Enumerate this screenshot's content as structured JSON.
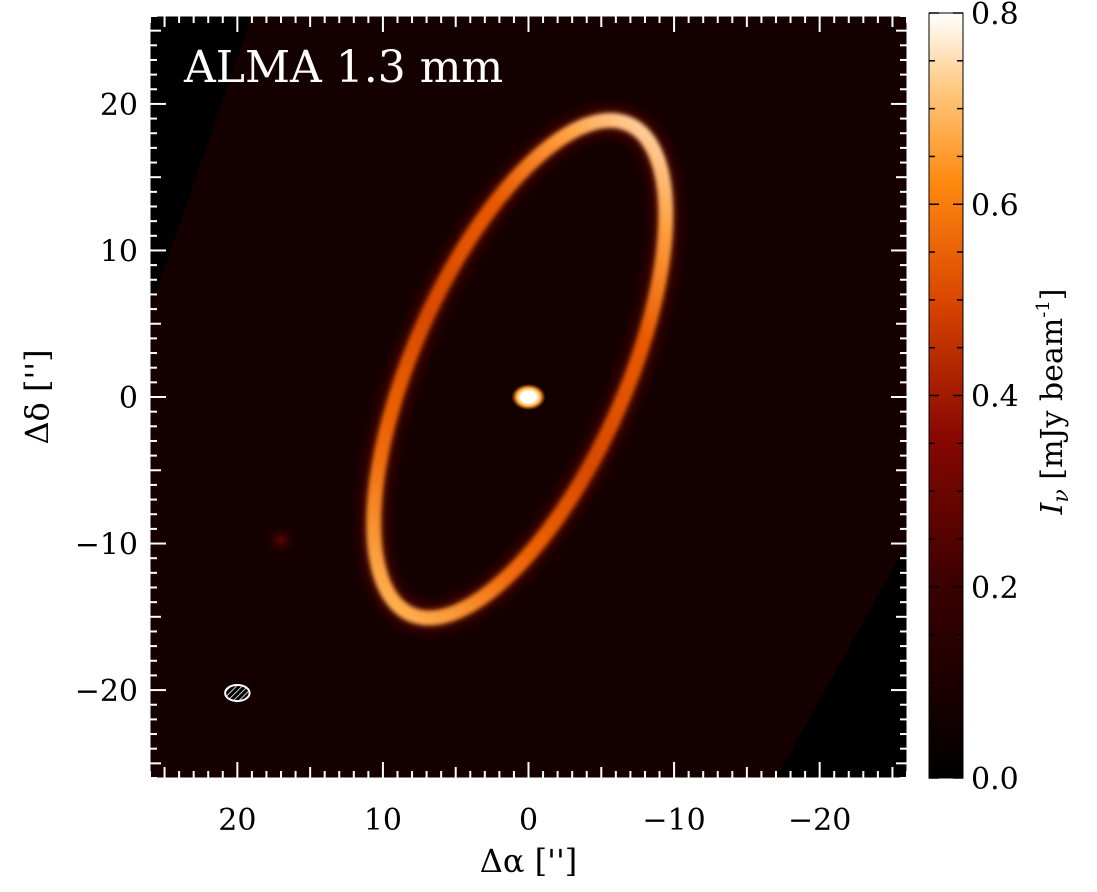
{
  "chart_data": {
    "type": "heatmap",
    "title": "ALMA 1.3 mm",
    "xlabel": "Δα  ['']",
    "ylabel": "Δδ  ['']",
    "xlim": [
      26,
      -26
    ],
    "ylim": [
      -26,
      26
    ],
    "x_ticks": [
      20,
      10,
      0,
      -10,
      -20
    ],
    "y_ticks": [
      20,
      10,
      0,
      -10,
      -20
    ],
    "x_tick_labels": [
      "20",
      "10",
      "0",
      "−10",
      "−20"
    ],
    "y_tick_labels": [
      "20",
      "10",
      "0",
      "−10",
      "−20"
    ],
    "colorbar": {
      "label": "I",
      "label_sub": "ν",
      "label_unit": " [mJy beam",
      "label_sup": "-1",
      "label_close": "]",
      "range": [
        0.0,
        0.8
      ],
      "ticks": [
        0.0,
        0.2,
        0.4,
        0.6,
        0.8
      ],
      "tick_labels": [
        "0.0",
        "0.2",
        "0.4",
        "0.6",
        "0.8"
      ],
      "colormap": "heat (black → dark red → orange → white)"
    },
    "features": {
      "ring": {
        "center": [
          0.6,
          1.9
        ],
        "semi_major_arcsec": 18.3,
        "semi_minor_arcsec": 7.3,
        "position_angle_deg": 156,
        "peak_brightness": 0.7,
        "typical_brightness": 0.5
      },
      "central_source": {
        "position": [
          0,
          0
        ],
        "brightness": 0.8
      },
      "compact_source": {
        "position": [
          17,
          -9.8
        ],
        "brightness": 0.12
      },
      "beam": {
        "position": [
          20,
          -20.2
        ],
        "major_arcsec": 1.6,
        "minor_arcsec": 1.1
      }
    },
    "colors": {
      "background": "#000000",
      "frame": "#ffffff",
      "title": "#ffffff"
    }
  }
}
